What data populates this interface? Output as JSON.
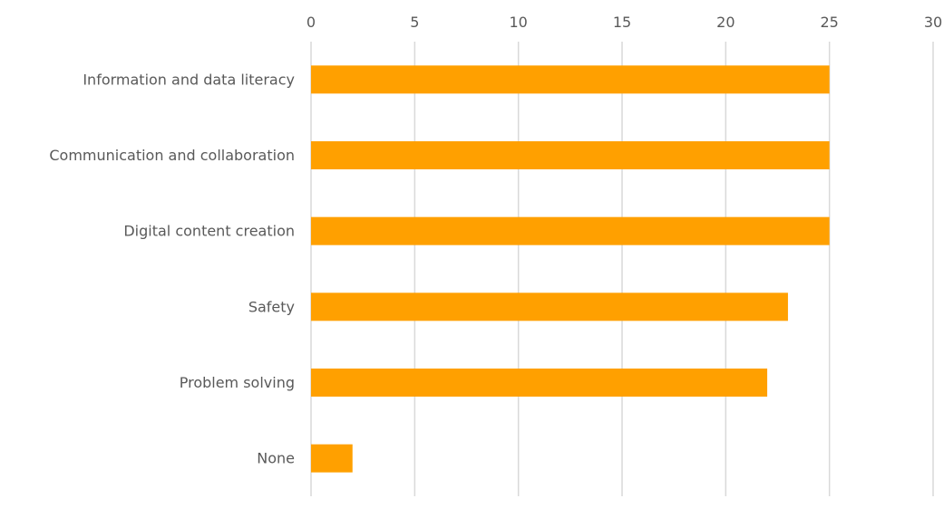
{
  "chart_data": {
    "type": "bar",
    "orientation": "horizontal",
    "categories": [
      "Information and data literacy",
      "Communication and collaboration",
      "Digital content creation",
      "Safety",
      "Problem solving",
      "None"
    ],
    "values": [
      25,
      25,
      25,
      23,
      22,
      2
    ],
    "xlim": [
      0,
      30
    ],
    "x_ticks": [
      0,
      5,
      10,
      15,
      20,
      25,
      30
    ],
    "tick_labels": [
      "0",
      "5",
      "10",
      "15",
      "20",
      "25",
      "30"
    ],
    "x_axis_position": "top",
    "grid": true,
    "legend": "none",
    "title": "",
    "xlabel": "",
    "ylabel": ""
  },
  "colors": {
    "bar": "#FFA000",
    "grid": "#D9D9D9",
    "text": "#595959",
    "background": "#FFFFFF"
  }
}
